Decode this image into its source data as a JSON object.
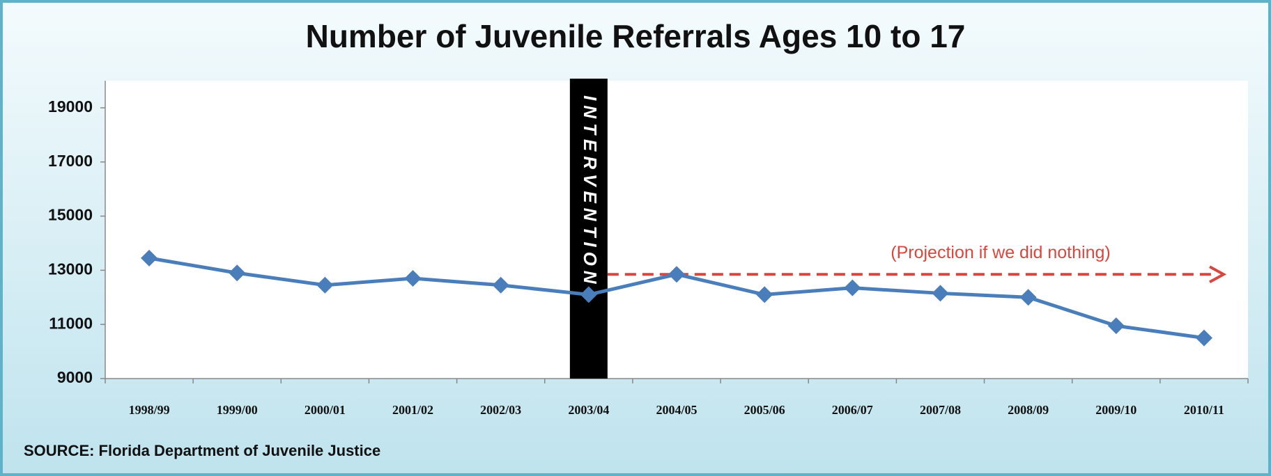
{
  "chart_data": {
    "type": "line",
    "title": "Number of Juvenile Referrals Ages 10 to 17",
    "categories": [
      "1998/99",
      "1999/00",
      "2000/01",
      "2001/02",
      "2002/03",
      "2003/04",
      "2004/05",
      "2005/06",
      "2006/07",
      "2007/08",
      "2008/09",
      "2009/10",
      "2010/11"
    ],
    "series": [
      {
        "name": "Juvenile Referrals",
        "color": "#4a7ebb",
        "values": [
          13450,
          12900,
          12450,
          12700,
          12450,
          12100,
          12850,
          12100,
          12350,
          12150,
          12000,
          10950,
          10500
        ]
      }
    ],
    "ylim": [
      9000,
      20000
    ],
    "yticks": [
      9000,
      11000,
      13000,
      15000,
      17000,
      19000
    ],
    "intervention": "INTERVENTION",
    "projection": {
      "label": "(Projection if we did nothing)",
      "value": 12850,
      "color": "#d9463f"
    },
    "source": "SOURCE: Florida Department of Juvenile Justice"
  }
}
